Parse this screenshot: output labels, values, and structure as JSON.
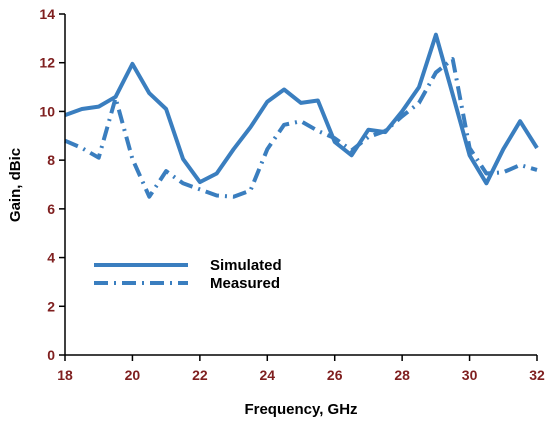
{
  "chart_data": {
    "type": "line",
    "xlabel": "Frequency, GHz",
    "ylabel": "Gain, dBic",
    "xlim": [
      18,
      32
    ],
    "ylim": [
      0,
      14
    ],
    "xticks": [
      18,
      20,
      22,
      24,
      26,
      28,
      30,
      32
    ],
    "yticks": [
      0,
      2,
      4,
      6,
      8,
      10,
      12,
      14
    ],
    "legend_position": "lower-left",
    "grid": false,
    "colors": {
      "line": "#3A7EBF",
      "x_tick_labels": "#7F1F1F",
      "y_tick_labels": "#7F1F1F"
    },
    "series": [
      {
        "name": "Simulated",
        "style": "solid",
        "x": [
          18,
          18.5,
          19,
          19.5,
          20,
          20.5,
          21,
          21.5,
          22,
          22.5,
          23,
          23.5,
          24,
          24.5,
          25,
          25.5,
          26,
          26.5,
          27,
          27.5,
          28,
          28.5,
          29,
          29.5,
          30,
          30.5,
          31,
          31.5,
          32
        ],
        "values": [
          9.85,
          10.1,
          10.2,
          10.6,
          11.95,
          10.75,
          10.1,
          8.05,
          7.1,
          7.45,
          8.45,
          9.35,
          10.4,
          10.9,
          10.35,
          10.45,
          8.75,
          8.2,
          9.25,
          9.15,
          10.0,
          11.0,
          13.15,
          10.7,
          8.2,
          7.05,
          8.45,
          9.6,
          8.5
        ]
      },
      {
        "name": "Measured",
        "style": "dash-dot",
        "x": [
          18,
          18.5,
          19,
          19.5,
          20,
          20.5,
          21,
          21.5,
          22,
          22.5,
          23,
          23.5,
          24,
          24.5,
          25,
          25.5,
          26,
          26.5,
          27,
          27.5,
          28,
          28.5,
          29,
          29.5,
          30,
          30.5,
          31,
          31.5,
          32
        ],
        "values": [
          8.8,
          8.5,
          8.1,
          10.55,
          8.05,
          6.5,
          7.55,
          7.05,
          6.8,
          6.55,
          6.5,
          6.75,
          8.45,
          9.45,
          9.6,
          9.2,
          8.9,
          8.4,
          8.95,
          9.2,
          9.8,
          10.35,
          11.6,
          12.15,
          8.5,
          7.45,
          7.5,
          7.8,
          7.6
        ]
      }
    ]
  }
}
